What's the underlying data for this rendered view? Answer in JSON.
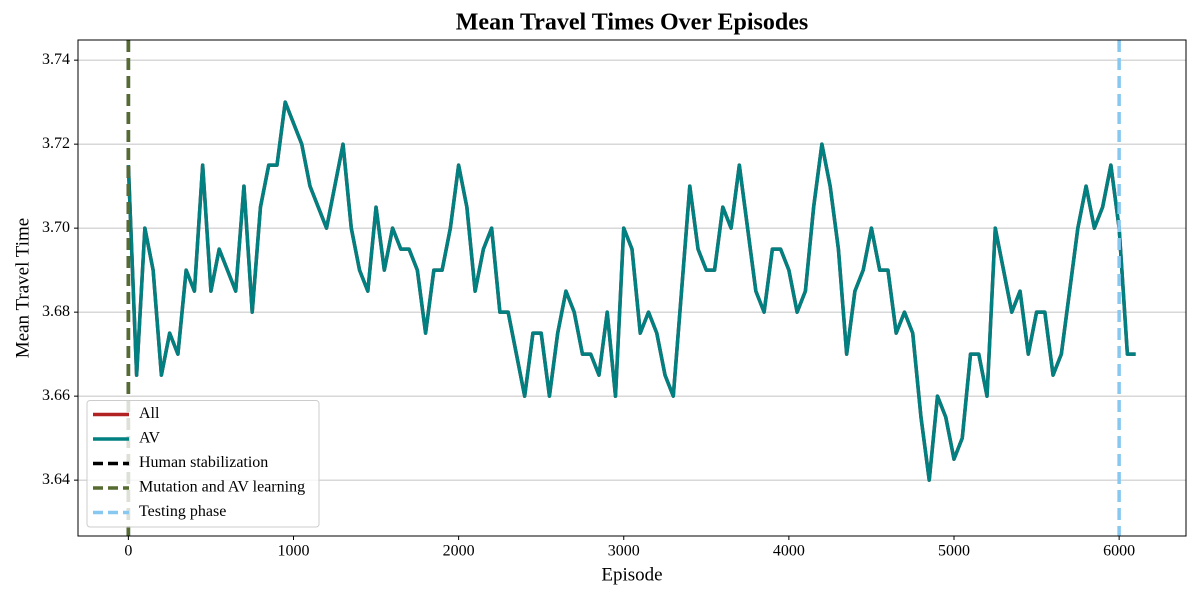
{
  "chart_data": {
    "type": "line",
    "title": "Mean Travel Times Over Episodes",
    "x_label": "Episode",
    "y_label": "Mean Travel Time",
    "x": [
      0,
      50,
      100,
      150,
      200,
      250,
      300,
      350,
      400,
      450,
      500,
      550,
      600,
      650,
      700,
      750,
      800,
      850,
      900,
      950,
      1000,
      1050,
      1100,
      1150,
      1200,
      1250,
      1300,
      1350,
      1400,
      1450,
      1500,
      1550,
      1600,
      1650,
      1700,
      1750,
      1800,
      1850,
      1900,
      1950,
      2000,
      2050,
      2100,
      2150,
      2200,
      2250,
      2300,
      2350,
      2400,
      2450,
      2500,
      2550,
      2600,
      2650,
      2700,
      2750,
      2800,
      2850,
      2900,
      2950,
      3000,
      3050,
      3100,
      3150,
      3200,
      3250,
      3300,
      3350,
      3400,
      3450,
      3500,
      3550,
      3600,
      3650,
      3700,
      3750,
      3800,
      3850,
      3900,
      3950,
      4000,
      4050,
      4100,
      4150,
      4200,
      4250,
      4300,
      4350,
      4400,
      4450,
      4500,
      4550,
      4600,
      4650,
      4700,
      4750,
      4800,
      4850,
      4900,
      4950,
      5000,
      5050,
      5100,
      5150,
      5200,
      5250,
      5300,
      5350,
      5400,
      5450,
      5500,
      5550,
      5600,
      5650,
      5700,
      5750,
      5800,
      5850,
      5900,
      5950,
      6000,
      6050,
      6100
    ],
    "series": [
      {
        "name": "All",
        "color": "#b22222",
        "values": [
          3.715,
          3.665,
          3.7,
          3.69,
          3.665,
          3.675,
          3.67,
          3.69,
          3.685,
          3.715,
          3.685,
          3.695,
          3.69,
          3.685,
          3.71,
          3.68,
          3.705,
          3.715,
          3.715,
          3.73,
          3.725,
          3.72,
          3.71,
          3.705,
          3.7,
          3.71,
          3.72,
          3.7,
          3.69,
          3.685,
          3.705,
          3.69,
          3.7,
          3.695,
          3.695,
          3.69,
          3.675,
          3.69,
          3.69,
          3.7,
          3.715,
          3.705,
          3.685,
          3.695,
          3.7,
          3.68,
          3.68,
          3.67,
          3.66,
          3.675,
          3.675,
          3.66,
          3.675,
          3.685,
          3.68,
          3.67,
          3.67,
          3.665,
          3.68,
          3.66,
          3.7,
          3.695,
          3.675,
          3.68,
          3.675,
          3.665,
          3.66,
          3.685,
          3.71,
          3.695,
          3.69,
          3.69,
          3.705,
          3.7,
          3.715,
          3.7,
          3.685,
          3.68,
          3.695,
          3.695,
          3.69,
          3.68,
          3.685,
          3.705,
          3.72,
          3.71,
          3.695,
          3.67,
          3.685,
          3.69,
          3.7,
          3.69,
          3.69,
          3.675,
          3.68,
          3.675,
          3.655,
          3.64,
          3.66,
          3.655,
          3.645,
          3.65,
          3.67,
          3.67,
          3.66,
          3.7,
          3.69,
          3.68,
          3.685,
          3.67,
          3.68,
          3.68,
          3.665,
          3.67,
          3.685,
          3.7,
          3.71,
          3.7,
          3.705,
          3.715,
          3.7,
          3.67,
          3.67
        ]
      },
      {
        "name": "AV",
        "color": "#008080",
        "values": [
          3.715,
          3.665,
          3.7,
          3.69,
          3.665,
          3.675,
          3.67,
          3.69,
          3.685,
          3.715,
          3.685,
          3.695,
          3.69,
          3.685,
          3.71,
          3.68,
          3.705,
          3.715,
          3.715,
          3.73,
          3.725,
          3.72,
          3.71,
          3.705,
          3.7,
          3.71,
          3.72,
          3.7,
          3.69,
          3.685,
          3.705,
          3.69,
          3.7,
          3.695,
          3.695,
          3.69,
          3.675,
          3.69,
          3.69,
          3.7,
          3.715,
          3.705,
          3.685,
          3.695,
          3.7,
          3.68,
          3.68,
          3.67,
          3.66,
          3.675,
          3.675,
          3.66,
          3.675,
          3.685,
          3.68,
          3.67,
          3.67,
          3.665,
          3.68,
          3.66,
          3.7,
          3.695,
          3.675,
          3.68,
          3.675,
          3.665,
          3.66,
          3.685,
          3.71,
          3.695,
          3.69,
          3.69,
          3.705,
          3.7,
          3.715,
          3.7,
          3.685,
          3.68,
          3.695,
          3.695,
          3.69,
          3.68,
          3.685,
          3.705,
          3.72,
          3.71,
          3.695,
          3.67,
          3.685,
          3.69,
          3.7,
          3.69,
          3.69,
          3.675,
          3.68,
          3.675,
          3.655,
          3.64,
          3.66,
          3.655,
          3.645,
          3.65,
          3.67,
          3.67,
          3.66,
          3.7,
          3.69,
          3.68,
          3.685,
          3.67,
          3.68,
          3.68,
          3.665,
          3.67,
          3.685,
          3.7,
          3.71,
          3.7,
          3.705,
          3.715,
          3.7,
          3.67,
          3.67
        ]
      }
    ],
    "vlines": [
      {
        "name": "Human stabilization",
        "color": "#000000",
        "x": 0
      },
      {
        "name": "Mutation and AV learning",
        "color": "#556b2f",
        "x": 0
      },
      {
        "name": "Testing phase",
        "color": "#87c8f0",
        "x": 6000
      }
    ],
    "xlim": [
      -305,
      6405
    ],
    "ylim": [
      3.6267,
      3.7448
    ],
    "xticks": [
      0,
      1000,
      2000,
      3000,
      4000,
      5000,
      6000
    ],
    "yticks": [
      {
        "value": 3.64,
        "label": "3.64"
      },
      {
        "value": 3.66,
        "label": "3.66"
      },
      {
        "value": 3.68,
        "label": "3.68"
      },
      {
        "value": 3.7,
        "label": "3.70"
      },
      {
        "value": 3.72,
        "label": "3.72"
      },
      {
        "value": 3.74,
        "label": "3.74"
      }
    ],
    "grid": "y",
    "legend": "lower left"
  }
}
